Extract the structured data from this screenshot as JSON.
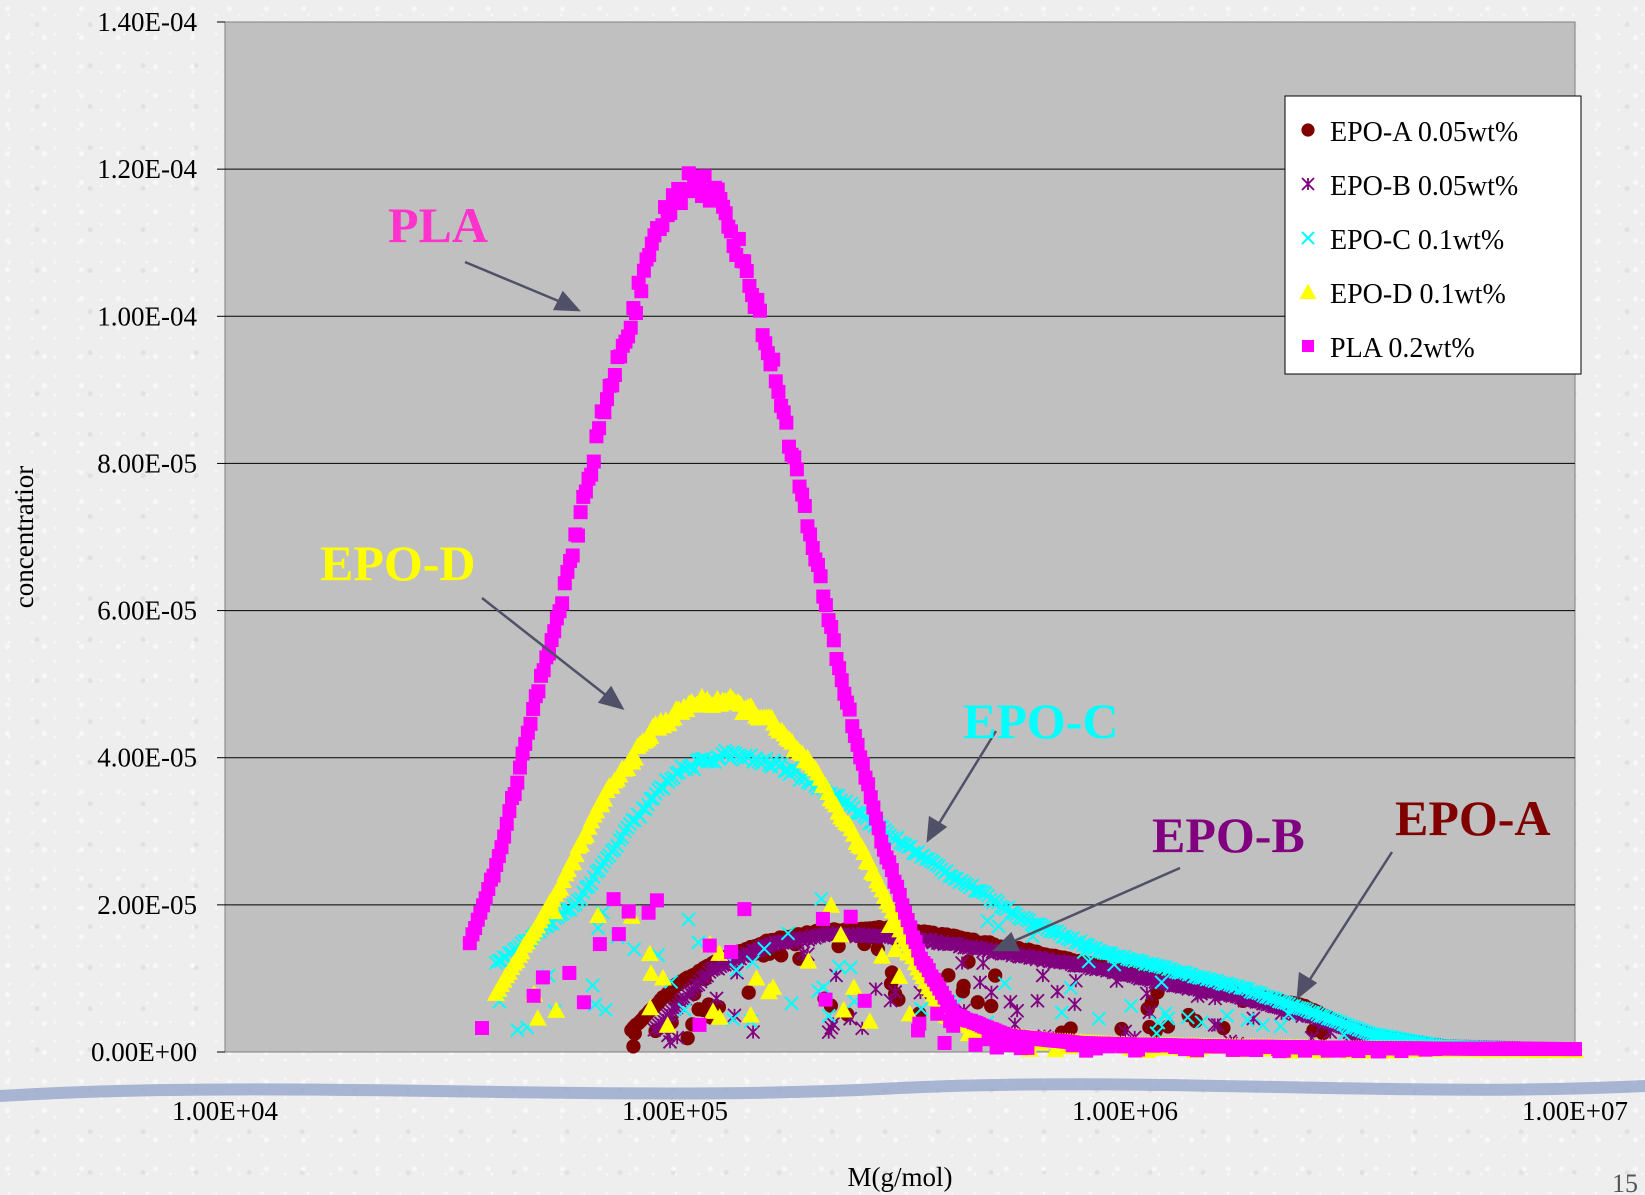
{
  "chart_data": {
    "type": "scatter",
    "title": "",
    "xlabel": "M(g/mol)",
    "ylabel": "concentratior",
    "x_scale": "log",
    "xlim": [
      10000,
      10000000
    ],
    "ylim": [
      0,
      0.00014
    ],
    "x_ticks": [
      10000,
      100000,
      1000000,
      10000000
    ],
    "x_tick_labels": [
      "1.00E+04",
      "1.00E+05",
      "1.00E+06",
      "1.00E+07"
    ],
    "y_ticks": [
      0,
      2e-05,
      4e-05,
      6e-05,
      8e-05,
      0.0001,
      0.00012,
      0.00014
    ],
    "y_tick_labels": [
      "0.00E+00",
      "2.00E-05",
      "4.00E-05",
      "6.00E-05",
      "8.00E-05",
      "1.00E-04",
      "1.20E-04",
      "1.40E-04"
    ],
    "grid": "horizontal",
    "plot_background": "#c0c0c0",
    "legend_position": "top-right",
    "series": [
      {
        "name": "EPO-A 0.05wt%",
        "marker": "circle",
        "color": "#800000",
        "curve": [
          [
            80000,
            3e-06
          ],
          [
            100000,
            9e-06
          ],
          [
            130000,
            1.3e-05
          ],
          [
            170000,
            1.55e-05
          ],
          [
            220000,
            1.65e-05
          ],
          [
            300000,
            1.68e-05
          ],
          [
            400000,
            1.58e-05
          ],
          [
            600000,
            1.38e-05
          ],
          [
            900000,
            1.15e-05
          ],
          [
            1300000,
            9.5e-06
          ],
          [
            1800000,
            8e-06
          ],
          [
            2500000,
            6.3e-06
          ],
          [
            3200000,
            3e-06
          ],
          [
            4000000,
            1.2e-06
          ],
          [
            6000000,
            5e-07
          ],
          [
            10000000,
            3e-07
          ]
        ]
      },
      {
        "name": "EPO-B 0.05wt%",
        "marker": "asterisk",
        "color": "#800080",
        "curve": [
          [
            90000,
            3e-06
          ],
          [
            120000,
            1.1e-05
          ],
          [
            160000,
            1.45e-05
          ],
          [
            220000,
            1.6e-05
          ],
          [
            300000,
            1.58e-05
          ],
          [
            400000,
            1.48e-05
          ],
          [
            600000,
            1.3e-05
          ],
          [
            900000,
            1.12e-05
          ],
          [
            1300000,
            9e-06
          ],
          [
            1800000,
            7.5e-06
          ],
          [
            2500000,
            5.2e-06
          ],
          [
            3500000,
            2.2e-06
          ],
          [
            5000000,
            8e-07
          ],
          [
            10000000,
            3e-07
          ]
        ]
      },
      {
        "name": "EPO-C 0.1wt%",
        "marker": "x",
        "color": "#00ffff",
        "curve": [
          [
            40000,
            1.2e-05
          ],
          [
            60000,
            2e-05
          ],
          [
            80000,
            3.1e-05
          ],
          [
            100000,
            3.8e-05
          ],
          [
            130000,
            4.05e-05
          ],
          [
            170000,
            3.9e-05
          ],
          [
            220000,
            3.55e-05
          ],
          [
            300000,
            2.95e-05
          ],
          [
            400000,
            2.45e-05
          ],
          [
            600000,
            1.8e-05
          ],
          [
            900000,
            1.35e-05
          ],
          [
            1300000,
            1.1e-05
          ],
          [
            1800000,
            8.8e-06
          ],
          [
            2500000,
            5.8e-06
          ],
          [
            3500000,
            2.5e-06
          ],
          [
            5000000,
            8e-07
          ],
          [
            10000000,
            2e-07
          ]
        ]
      },
      {
        "name": "EPO-D 0.1wt%",
        "marker": "triangle",
        "color": "#ffff00",
        "curve": [
          [
            40000,
            8e-06
          ],
          [
            55000,
            2.2e-05
          ],
          [
            70000,
            3.5e-05
          ],
          [
            90000,
            4.4e-05
          ],
          [
            110000,
            4.75e-05
          ],
          [
            130000,
            4.78e-05
          ],
          [
            160000,
            4.55e-05
          ],
          [
            200000,
            3.9e-05
          ],
          [
            250000,
            2.95e-05
          ],
          [
            300000,
            2e-05
          ],
          [
            350000,
            1.1e-05
          ],
          [
            400000,
            5e-06
          ],
          [
            500000,
            2.5e-06
          ],
          [
            700000,
            1.5e-06
          ],
          [
            1000000,
            1e-06
          ],
          [
            3000000,
            5e-07
          ],
          [
            10000000,
            2e-07
          ]
        ]
      },
      {
        "name": "PLA 0.2wt%",
        "marker": "square",
        "color": "#ff00ff",
        "curve": [
          [
            35000,
            1.5e-05
          ],
          [
            40000,
            2.5e-05
          ],
          [
            45000,
            3.8e-05
          ],
          [
            50000,
            5e-05
          ],
          [
            58000,
            6.5e-05
          ],
          [
            68000,
            8.5e-05
          ],
          [
            80000,
            0.0001
          ],
          [
            95000,
            0.000114
          ],
          [
            110000,
            0.000119
          ],
          [
            125000,
            0.000116
          ],
          [
            145000,
            0.000106
          ],
          [
            170000,
            9e-05
          ],
          [
            200000,
            7e-05
          ],
          [
            240000,
            4.8e-05
          ],
          [
            290000,
            2.8e-05
          ],
          [
            350000,
            1.3e-05
          ],
          [
            420000,
            5e-06
          ],
          [
            550000,
            2.2e-06
          ],
          [
            800000,
            1.2e-06
          ],
          [
            1500000,
            8e-07
          ],
          [
            4000000,
            5e-07
          ],
          [
            10000000,
            4e-07
          ]
        ]
      }
    ],
    "annotations": [
      {
        "text": "PLA",
        "color": "#ff33cc"
      },
      {
        "text": "EPO-D",
        "color": "#ffff00"
      },
      {
        "text": "EPO-C",
        "color": "#00ffff"
      },
      {
        "text": "EPO-B",
        "color": "#800080"
      },
      {
        "text": "EPO-A",
        "color": "#800000"
      }
    ]
  },
  "slide": {
    "number": "15"
  }
}
